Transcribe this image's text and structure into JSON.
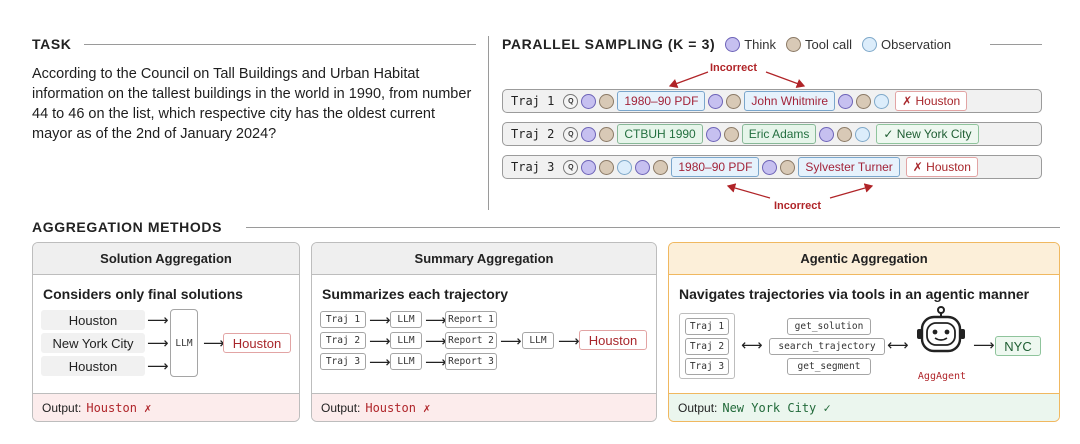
{
  "task": {
    "heading": "TASK",
    "question": "According to the Council on Tall Buildings and Urban Habitat information on the tallest buildings in the world in 1990, from number 44 to 46 on the list, which respective city has the oldest current mayor as of the 2nd of January 2024?"
  },
  "sampling": {
    "heading": "PARALLEL SAMPLING (K = 3)",
    "legend": [
      {
        "label": "Think",
        "kind": "think"
      },
      {
        "label": "Tool call",
        "kind": "tool"
      },
      {
        "label": "Observation",
        "kind": "obs"
      }
    ],
    "query_glyph": "Q",
    "incorrect_label": "Incorrect",
    "trajectories": [
      {
        "label": "Traj 1",
        "steps": [
          "q",
          "think",
          "tool",
          "chip:blue:1980–90 PDF",
          "think",
          "tool",
          "chip:blue:John Whitmire",
          "think",
          "tool",
          "obs",
          "chip:wrong:✗ Houston"
        ]
      },
      {
        "label": "Traj 2",
        "steps": [
          "q",
          "think",
          "tool",
          "chip:green:CTBUH 1990",
          "think",
          "tool",
          "chip:green:Eric Adams",
          "think",
          "tool",
          "obs",
          "chip:right:✓ New York City"
        ]
      },
      {
        "label": "Traj 3",
        "steps": [
          "q",
          "think",
          "tool",
          "obs",
          "think",
          "tool",
          "chip:blue:1980–90 PDF",
          "think",
          "tool",
          "chip:blue:Sylvester Turner",
          "chip:wrong:✗ Houston"
        ]
      }
    ]
  },
  "aggregation": {
    "heading": "AGGREGATION METHODS",
    "arrow": "⟶",
    "double_arrow": "⟷",
    "solution": {
      "title": "Solution Aggregation",
      "subtitle": "Considers only final solutions",
      "candidates": [
        "Houston",
        "New York City",
        "Houston"
      ],
      "llm": "LLM",
      "answer": "Houston",
      "output_label": "Output:",
      "output_value": "Houston ✗"
    },
    "summary": {
      "title": "Summary Aggregation",
      "subtitle": "Summarizes each trajectory",
      "trajs": [
        "Traj 1",
        "Traj 2",
        "Traj 3"
      ],
      "llm": "LLM",
      "reports": [
        "Report 1",
        "Report 2",
        "Report 3"
      ],
      "final_llm": "LLM",
      "answer": "Houston",
      "output_label": "Output:",
      "output_value": "Houston ✗"
    },
    "agentic": {
      "title": "Agentic Aggregation",
      "subtitle": "Navigates trajectories via tools in an agentic manner",
      "trajs": [
        "Traj 1",
        "Traj 2",
        "Traj 3"
      ],
      "tools": [
        "get_solution",
        "search_trajectory",
        "get_segment"
      ],
      "agent_name": "AggAgent",
      "answer": "NYC",
      "output_label": "Output:",
      "output_value": "New York City ✓",
      "accent": "#f0b860"
    }
  }
}
